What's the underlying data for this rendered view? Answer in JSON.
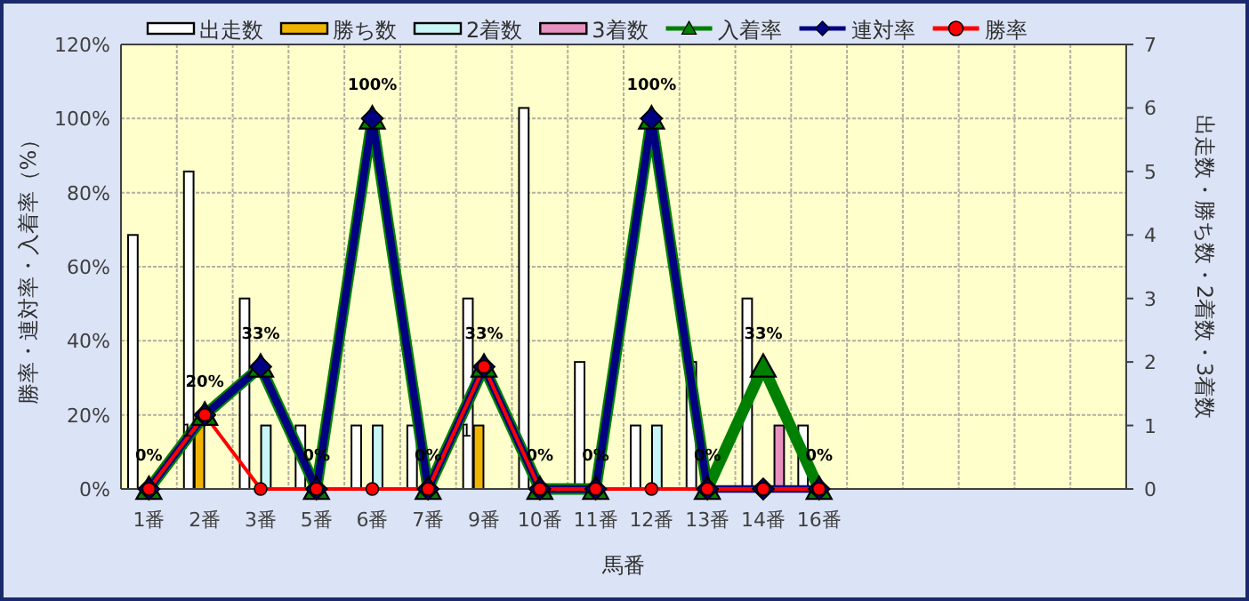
{
  "chart_data": {
    "type": "bar",
    "xlabel": "馬番",
    "ylabel": "勝率・連対率・入着率（%）",
    "y2label": "出走数・勝ち数・2着数・3着数",
    "categories": [
      "1番",
      "2番",
      "3番",
      "5番",
      "6番",
      "7番",
      "9番",
      "10番",
      "11番",
      "12番",
      "13番",
      "14番",
      "16番",
      null,
      null,
      null,
      null,
      null
    ],
    "series": [
      {
        "name": "出走数",
        "axis": "y2",
        "color": "#ffffff",
        "values": [
          4,
          5,
          3,
          1,
          1,
          1,
          3,
          6,
          2,
          1,
          2,
          3,
          1,
          null,
          null,
          null,
          null,
          null
        ]
      },
      {
        "name": "勝ち数",
        "axis": "y2",
        "color": "#f0b400",
        "values": [
          0,
          1,
          0,
          0,
          0,
          0,
          1,
          0,
          0,
          0,
          0,
          0,
          0,
          null,
          null,
          null,
          null,
          null
        ],
        "value_labels": [
          null,
          "1",
          null,
          null,
          null,
          null,
          "1",
          null,
          null,
          null,
          null,
          null,
          null,
          null,
          null,
          null,
          null,
          null
        ]
      },
      {
        "name": "2着数",
        "axis": "y2",
        "color": "#c8f5f5",
        "values": [
          0,
          0,
          1,
          0,
          1,
          0,
          0,
          0,
          0,
          1,
          0,
          0,
          0,
          null,
          null,
          null,
          null,
          null
        ]
      },
      {
        "name": "3着数",
        "axis": "y2",
        "color": "#e890c0",
        "values": [
          0,
          0,
          0,
          0,
          0,
          0,
          0,
          0,
          0,
          0,
          0,
          1,
          0,
          null,
          null,
          null,
          null,
          null
        ]
      },
      {
        "name": "入着率",
        "type": "line",
        "color": "#008000",
        "marker": "triangle",
        "values": [
          0,
          20,
          33,
          0,
          100,
          0,
          33,
          0,
          0,
          100,
          0,
          33,
          0,
          null,
          null,
          null,
          null,
          null
        ],
        "value_labels": [
          "0%",
          "20%",
          "33%",
          "0%",
          "100%",
          "0%",
          "33%",
          "0%",
          "0%",
          "100%",
          "0%",
          "33%",
          "0%",
          null,
          null,
          null,
          null,
          null
        ]
      },
      {
        "name": "連対率",
        "type": "line",
        "color": "#000080",
        "marker": "diamond",
        "values": [
          0,
          20,
          33,
          0,
          100,
          0,
          33,
          0,
          0,
          100,
          0,
          0,
          0,
          null,
          null,
          null,
          null,
          null
        ]
      },
      {
        "name": "勝率",
        "type": "line",
        "color": "#ff0000",
        "marker": "circle",
        "values": [
          0,
          20,
          0,
          0,
          0,
          0,
          33,
          0,
          0,
          0,
          0,
          0,
          0,
          null,
          null,
          null,
          null,
          null
        ]
      }
    ],
    "ylim": [
      0,
      120
    ],
    "yticks": [
      {
        "value": 0,
        "label": "0%"
      },
      {
        "value": 20,
        "label": "20%"
      },
      {
        "value": 40,
        "label": "40%"
      },
      {
        "value": 60,
        "label": "60%"
      },
      {
        "value": 80,
        "label": "80%"
      },
      {
        "value": 100,
        "label": "100%"
      },
      {
        "value": 120,
        "label": "120%"
      }
    ],
    "y2lim": [
      0,
      7
    ],
    "y2ticks": [
      0,
      1,
      2,
      3,
      4,
      5,
      6,
      7
    ],
    "grid": true,
    "legend": "top"
  }
}
